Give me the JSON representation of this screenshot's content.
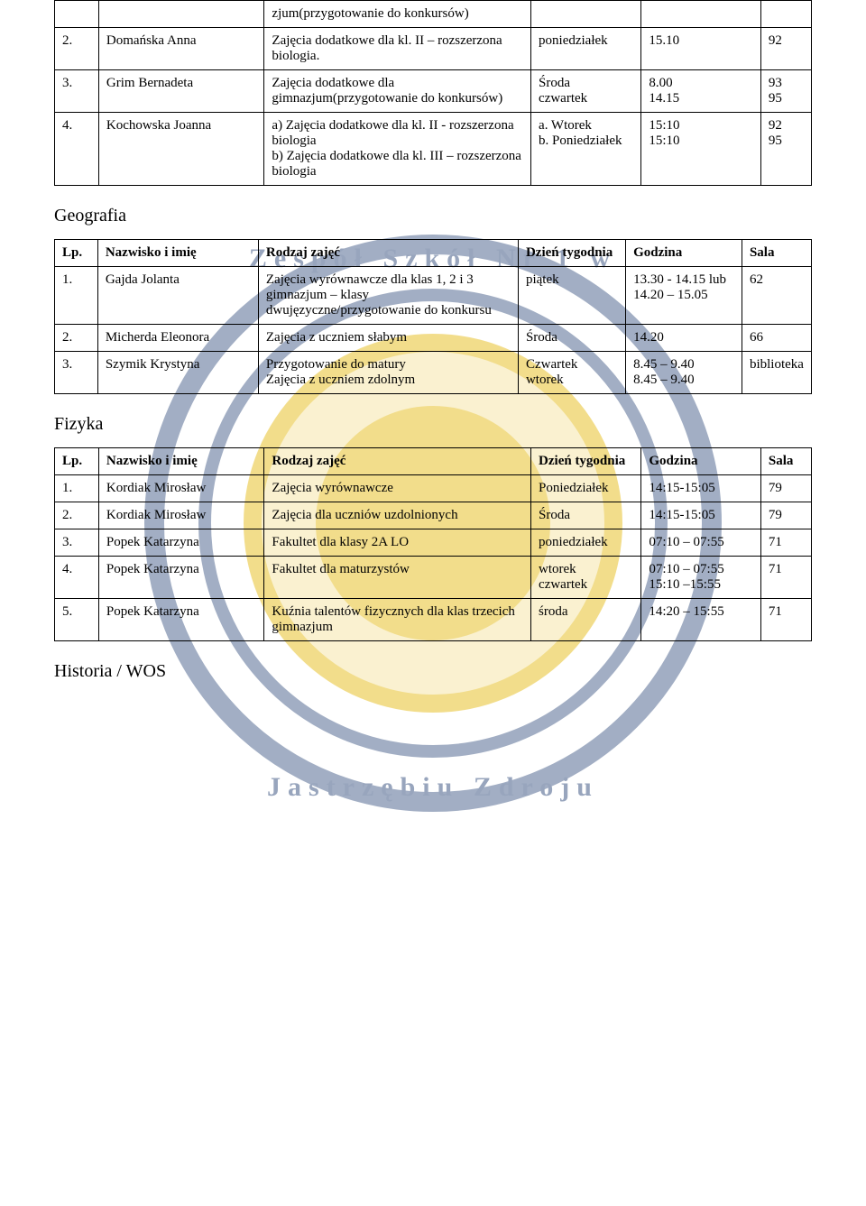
{
  "table1": {
    "rows": [
      {
        "lp": "",
        "name": "",
        "type": "zjum(przygotowanie do konkursów)",
        "day": "",
        "time": "",
        "room": ""
      },
      {
        "lp": "2.",
        "name": "Domańska Anna",
        "type": "Zajęcia dodatkowe dla kl. II – rozszerzona biologia.",
        "day": "poniedziałek",
        "time": "15.10",
        "room": "92"
      },
      {
        "lp": "3.",
        "name": "Grim Bernadeta",
        "type": "Zajęcia dodatkowe dla gimnazjum(przygotowanie do konkursów)",
        "day": "Środa\nczwartek",
        "time": "8.00\n14.15",
        "room": "93\n95"
      },
      {
        "lp": "4.",
        "name": "Kochowska Joanna",
        "type": "a)  Zajęcia dodatkowe dla kl. II - rozszerzona biologia\nb)  Zajęcia dodatkowe dla kl. III – rozszerzona biologia",
        "day": "a. Wtorek\nb. Poniedziałek",
        "time": "15:10\n15:10",
        "room": "92\n95"
      }
    ]
  },
  "section2": {
    "title": "Geografia",
    "headers": {
      "lp": "Lp.",
      "name": "Nazwisko i imię",
      "type": "Rodzaj zajęć",
      "day": "Dzień tygodnia",
      "time": "Godzina",
      "room": "Sala"
    },
    "rows": [
      {
        "lp": "1.",
        "name": "Gajda Jolanta",
        "type": "Zajęcia wyrównawcze dla klas 1, 2 i 3 gimnazjum – klasy dwujęzyczne/przygotowanie do konkursu",
        "day": "piątek",
        "time": "13.30 - 14.15 lub 14.20 – 15.05",
        "room": "62"
      },
      {
        "lp": "2.",
        "name": "Micherda Eleonora",
        "type": "Zajęcia z uczniem słabym",
        "day": "Środa",
        "time": "14.20",
        "room": "66"
      },
      {
        "lp": "3.",
        "name": "Szymik Krystyna",
        "type": "Przygotowanie do matury\nZajęcia z uczniem zdolnym",
        "day": "Czwartek\nwtorek",
        "time": "8.45 – 9.40\n8.45 – 9.40",
        "room": "biblioteka"
      }
    ]
  },
  "section3": {
    "title": "Fizyka",
    "headers": {
      "lp": "Lp.",
      "name": "Nazwisko i imię",
      "type": "Rodzaj zajęć",
      "day": "Dzień tygodnia",
      "time": "Godzina",
      "room": "Sala"
    },
    "rows": [
      {
        "lp": "1.",
        "name": "Kordiak Mirosław",
        "type": "Zajęcia wyrównawcze",
        "day": "Poniedziałek",
        "time": "14:15-15:05",
        "room": "79"
      },
      {
        "lp": "2.",
        "name": "Kordiak Mirosław",
        "type": "Zajęcia dla uczniów uzdolnionych",
        "day": "Środa",
        "time": "14:15-15:05",
        "room": "79"
      },
      {
        "lp": "3.",
        "name": "Popek Katarzyna",
        "type": "Fakultet dla klasy 2A LO",
        "day": "poniedziałek",
        "time": "07:10 – 07:55",
        "room": "71"
      },
      {
        "lp": "4.",
        "name": "Popek Katarzyna",
        "type": "Fakultet dla maturzystów",
        "day": "wtorek\nczwartek",
        "time": "07:10 – 07:55\n15:10 –15:55",
        "room": "71"
      },
      {
        "lp": "5.",
        "name": "Popek Katarzyna",
        "type": "Kuźnia talentów fizycznych dla klas trzecich gimnazjum",
        "day": "środa",
        "time": "14:20 – 15:55",
        "room": "71"
      }
    ]
  },
  "section4": {
    "title": "Historia / WOS"
  },
  "watermark": {
    "top_text": "Zespół Szkół Nr 1 w",
    "bottom_text": "Jastrzębiu Zdroju"
  }
}
